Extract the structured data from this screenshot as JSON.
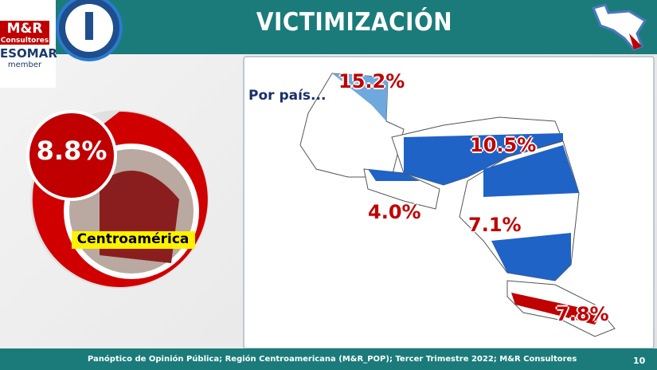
{
  "header": {
    "title": "VICTIMIZACIÓN"
  },
  "logo": {
    "brand": "M&R",
    "brand_sub": "Consultores",
    "association": "ESOMAR",
    "association_sub": "member"
  },
  "summary": {
    "value": "8.8%",
    "label": "Centroamérica"
  },
  "map": {
    "subtitle": "Por país...",
    "countries": [
      {
        "value": "15.2%"
      },
      {
        "value": "10.5%"
      },
      {
        "value": "4.0%"
      },
      {
        "value": "7.1%"
      },
      {
        "value": "7.8%"
      }
    ]
  },
  "footer": {
    "source": "Panóptico de Opinión Pública; Región Centroamericana (M&R_POP); Tercer Trimestre 2022; M&R Consultores",
    "page": "10"
  }
}
